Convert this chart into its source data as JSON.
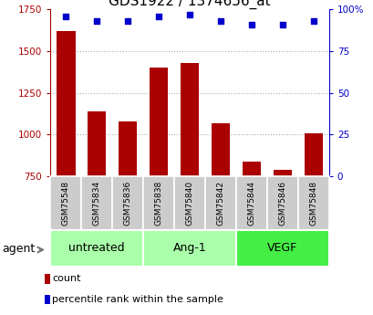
{
  "title": "GDS1922 / 1374656_at",
  "samples": [
    "GSM75548",
    "GSM75834",
    "GSM75836",
    "GSM75838",
    "GSM75840",
    "GSM75842",
    "GSM75844",
    "GSM75846",
    "GSM75848"
  ],
  "counts": [
    1620,
    1140,
    1080,
    1400,
    1430,
    1070,
    840,
    790,
    1010
  ],
  "percentiles": [
    96,
    93,
    93,
    96,
    97,
    93,
    91,
    91,
    93
  ],
  "ylim_left": [
    750,
    1750
  ],
  "ylim_right": [
    0,
    100
  ],
  "yticks_left": [
    750,
    1000,
    1250,
    1500,
    1750
  ],
  "yticks_right": [
    0,
    25,
    50,
    75,
    100
  ],
  "groups": [
    {
      "label": "untreated",
      "indices": [
        0,
        1,
        2
      ]
    },
    {
      "label": "Ang-1",
      "indices": [
        3,
        4,
        5
      ]
    },
    {
      "label": "VEGF",
      "indices": [
        6,
        7,
        8
      ]
    }
  ],
  "group_colors": [
    "#aaffaa",
    "#aaffaa",
    "#44ee44"
  ],
  "bar_color": "#aa0000",
  "dot_color": "#0000cc",
  "bar_width": 0.6,
  "grid_color": "#aaaaaa",
  "title_fontsize": 11,
  "tick_fontsize": 7.5,
  "sample_fontsize": 6.5,
  "group_fontsize": 9,
  "legend_fontsize": 8,
  "agent_fontsize": 9,
  "sample_box_color": "#cccccc",
  "sample_box_edge": "#999999",
  "legend_count_label": "count",
  "legend_pct_label": "percentile rank within the sample"
}
